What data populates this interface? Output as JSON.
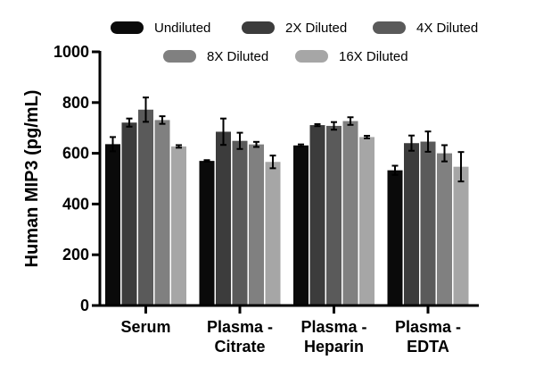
{
  "chart_data": {
    "type": "bar",
    "ylabel": "Human MIP3 (pg/mL)",
    "xlabel": "",
    "ylim": [
      0,
      1000
    ],
    "yticks": [
      0,
      200,
      400,
      600,
      800,
      1000
    ],
    "grid": false,
    "legend_position": "top",
    "categories": [
      [
        "Serum"
      ],
      [
        "Plasma -",
        "Citrate"
      ],
      [
        "Plasma -",
        "Heparin"
      ],
      [
        "Plasma -",
        "EDTA"
      ]
    ],
    "series": [
      {
        "name": "Undiluted",
        "color": "#0a0a0a",
        "values": [
          636,
          570,
          631,
          533
        ],
        "errors": [
          28,
          3,
          4,
          18
        ]
      },
      {
        "name": "2X Diluted",
        "color": "#3c3c3c",
        "values": [
          721,
          685,
          711,
          640
        ],
        "errors": [
          16,
          52,
          4,
          30
        ]
      },
      {
        "name": "4X Diluted",
        "color": "#5a5a5a",
        "values": [
          772,
          649,
          708,
          646
        ],
        "errors": [
          48,
          32,
          15,
          40
        ]
      },
      {
        "name": "8X Diluted",
        "color": "#808080",
        "values": [
          731,
          635,
          727,
          600
        ],
        "errors": [
          15,
          10,
          15,
          32
        ]
      },
      {
        "name": "16X Diluted",
        "color": "#a6a6a6",
        "values": [
          627,
          566,
          664,
          547
        ],
        "errors": [
          5,
          25,
          5,
          58
        ]
      }
    ]
  }
}
